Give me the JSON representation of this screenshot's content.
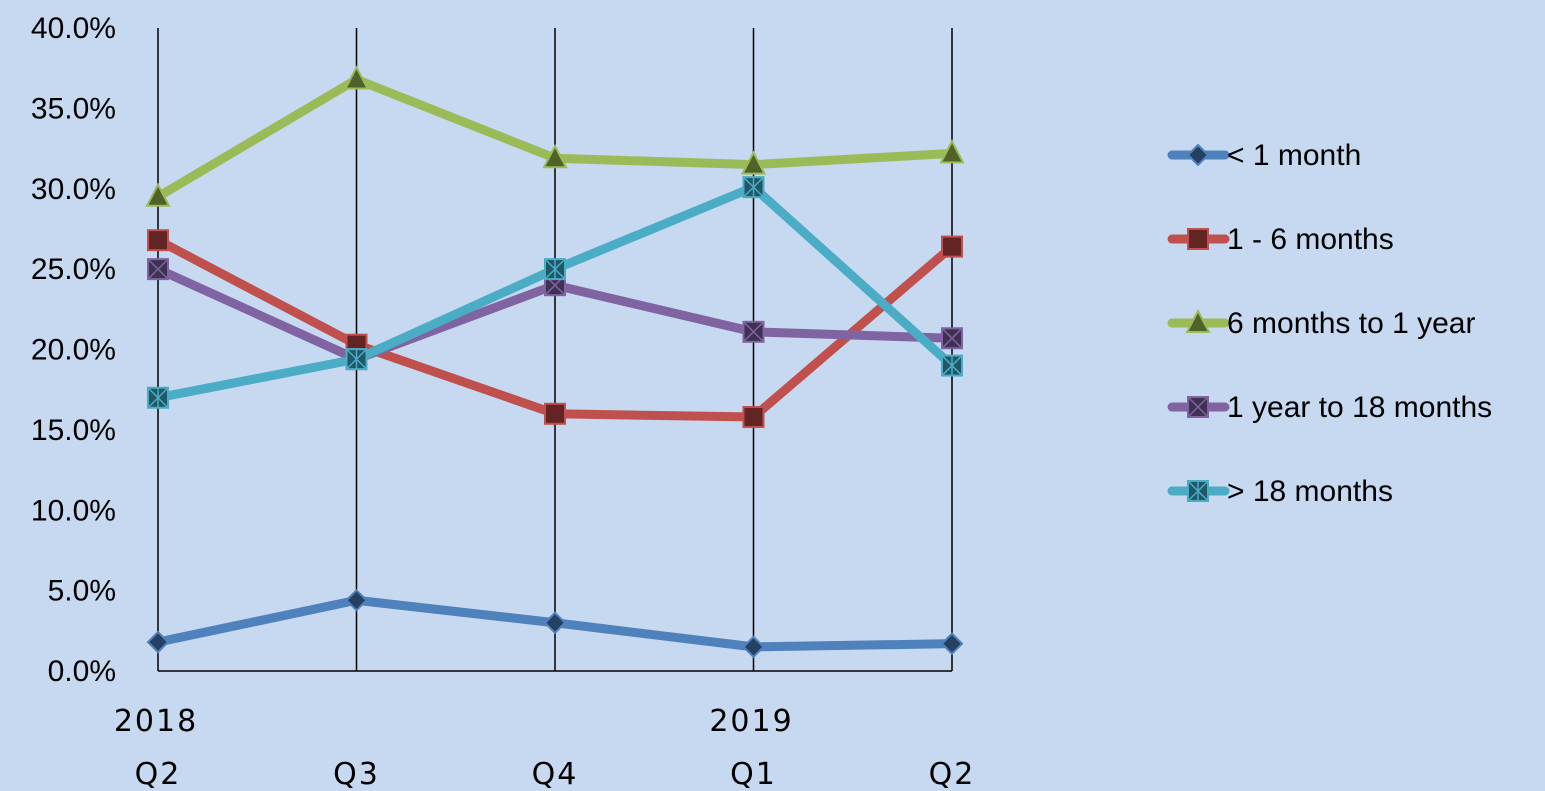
{
  "chart_data": {
    "type": "line",
    "categories": [
      "Q2",
      "Q3",
      "Q4",
      "Q1",
      "Q2"
    ],
    "year_labels": [
      "2018",
      "",
      "",
      "2019",
      ""
    ],
    "ylim": [
      0,
      40
    ],
    "yticks": [
      "0.0%",
      "5.0%",
      "10.0%",
      "15.0%",
      "20.0%",
      "25.0%",
      "30.0%",
      "35.0%",
      "40.0%"
    ],
    "grid": "vertical",
    "legend_position": "right",
    "series": [
      {
        "name": "< 1 month",
        "values": [
          1.8,
          4.4,
          3.0,
          1.5,
          1.7
        ],
        "color": "#4f81bd",
        "marker": "diamond",
        "marker_color": "#254061"
      },
      {
        "name": "1 - 6 months",
        "values": [
          26.8,
          20.3,
          16.0,
          15.8,
          26.4
        ],
        "color": "#c0504d",
        "marker": "square",
        "marker_color": "#632523"
      },
      {
        "name": "6 months to 1 year",
        "values": [
          29.5,
          36.8,
          31.9,
          31.5,
          32.2
        ],
        "color": "#9bbb59",
        "marker": "triangle",
        "marker_color": "#4f6228"
      },
      {
        "name": "1 year to 18 months",
        "values": [
          25.0,
          19.4,
          24.0,
          21.1,
          20.7
        ],
        "color": "#8064a2",
        "marker": "x-square",
        "marker_color": "#3f3151"
      },
      {
        "name": "> 18 months",
        "values": [
          17.0,
          19.4,
          25.0,
          30.1,
          19.0
        ],
        "color": "#4bacc6",
        "marker": "star-square",
        "marker_color": "#205867"
      }
    ]
  }
}
